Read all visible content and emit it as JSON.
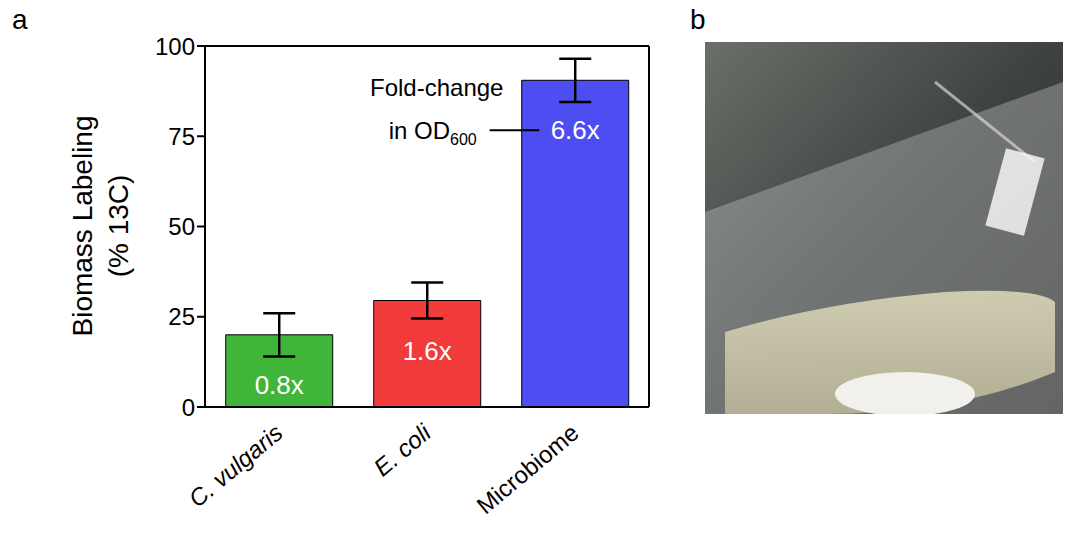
{
  "panel_labels": [
    "a",
    "b"
  ],
  "chart_data": {
    "type": "bar",
    "categories": [
      "C. vulgaris",
      "E. coli",
      "Microbiome"
    ],
    "values": [
      20,
      29.5,
      90.5
    ],
    "error": [
      6,
      5,
      6
    ],
    "colors": [
      "#3fb53a",
      "#f23b3b",
      "#4d4df2"
    ],
    "ylabel": "Biomass Labeling (% 13C)",
    "ylim": [
      0,
      100
    ],
    "yticks": [
      0,
      25,
      50,
      75,
      100
    ],
    "fold_change": [
      0.8,
      1.6,
      6.6
    ],
    "fold_change_labels": [
      "0.8x",
      "1.6x",
      "6.6x"
    ],
    "annotation": "Fold-change in OD600"
  }
}
